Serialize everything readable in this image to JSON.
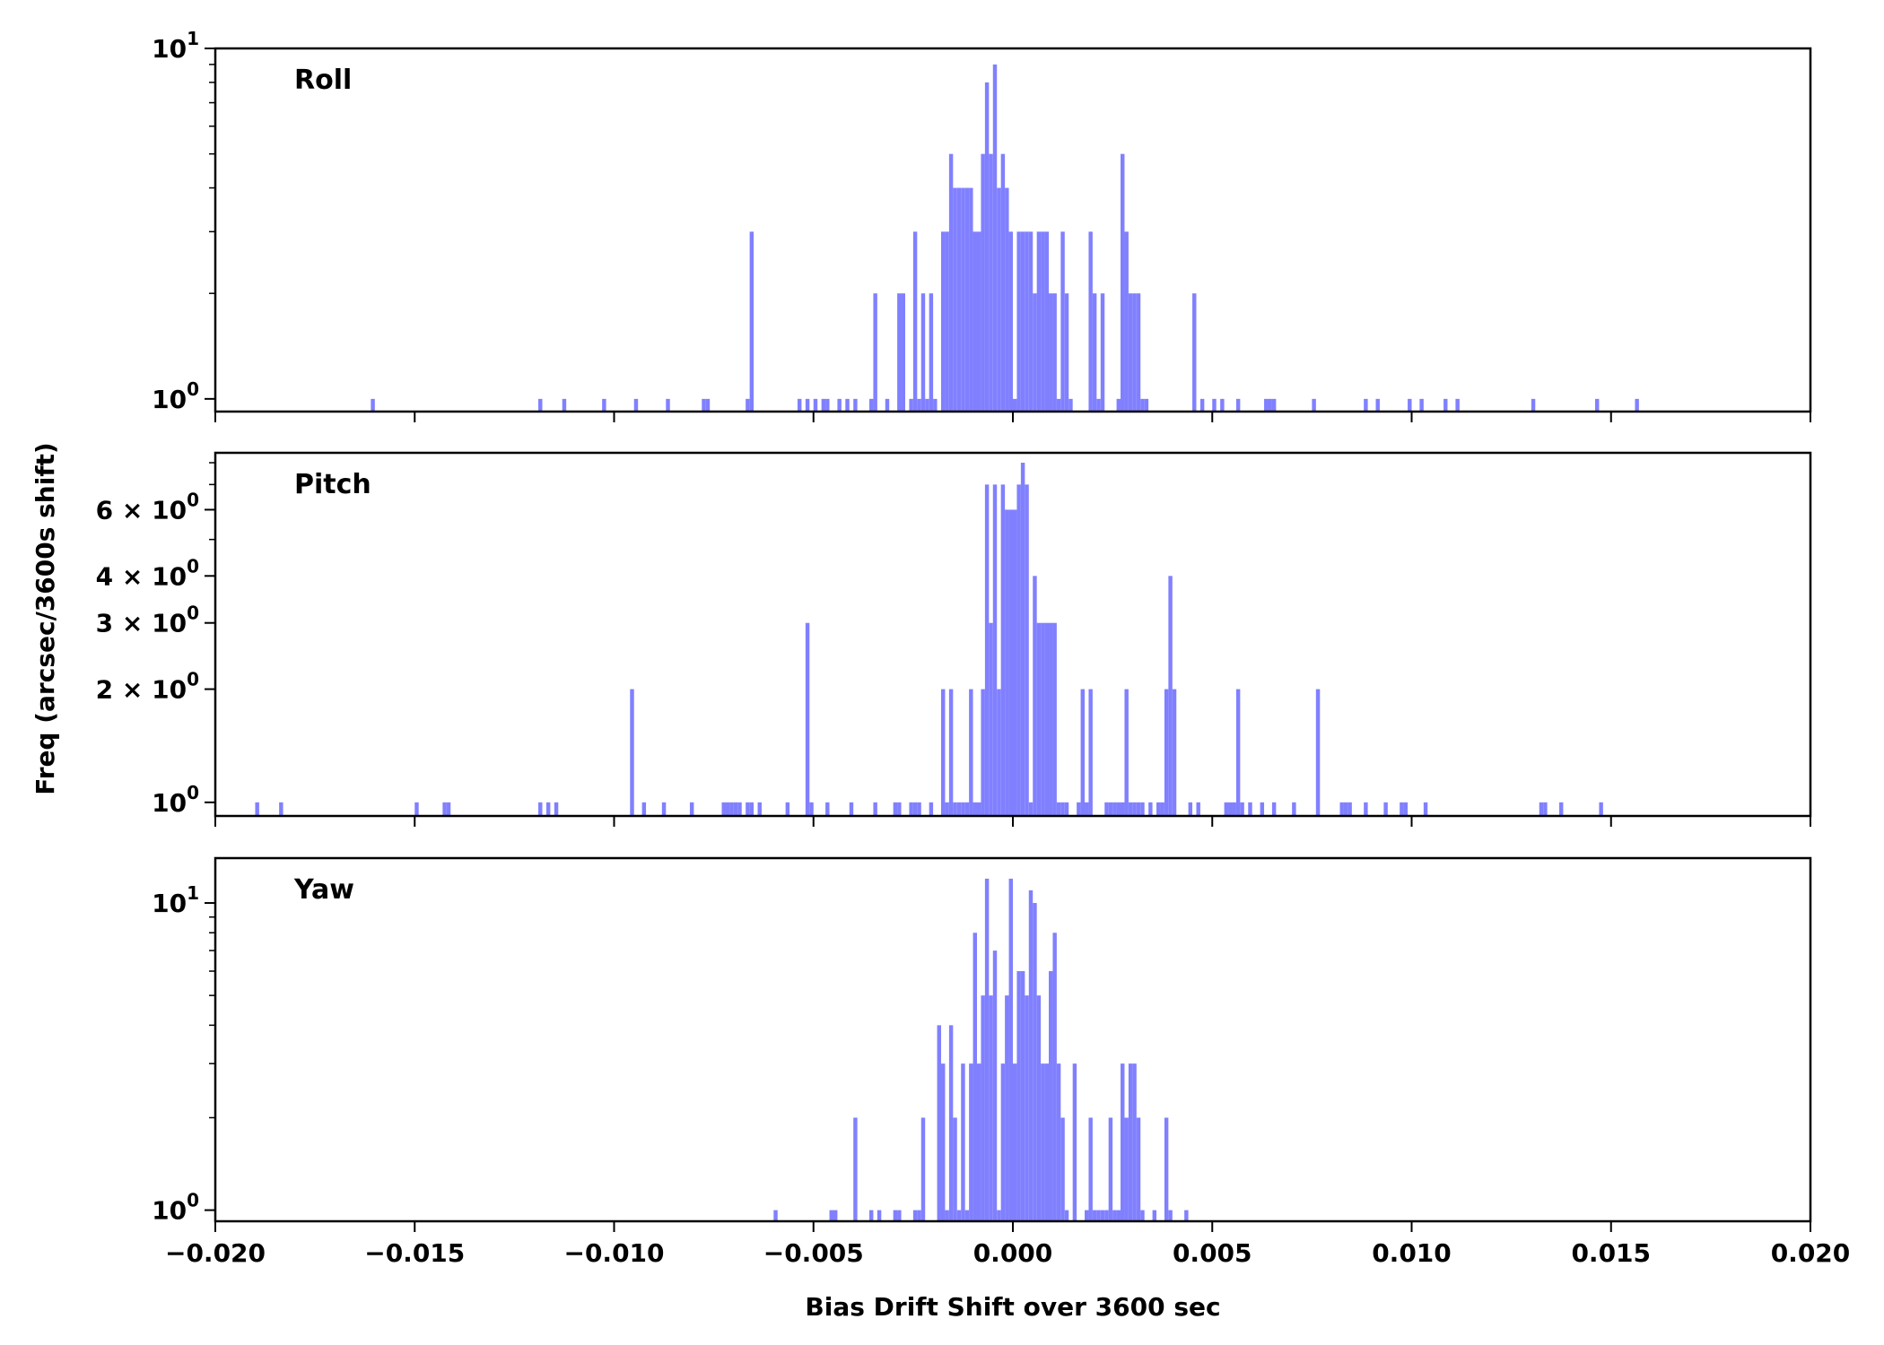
{
  "chart_data": {
    "type": "bar",
    "xlabel": "Bias Drift Shift over 3600 sec",
    "ylabel": "Freq (arcsec/3600s shift)",
    "xlim": [
      -0.02,
      0.02
    ],
    "xticks": [
      -0.02,
      -0.015,
      -0.01,
      -0.005,
      0.0,
      0.005,
      0.01,
      0.015,
      0.02
    ],
    "xtick_labels": [
      "−0.020",
      "−0.015",
      "−0.010",
      "−0.005",
      "0.000",
      "0.005",
      "0.010",
      "0.015",
      "0.020"
    ],
    "yscale": "log",
    "bin_width": 0.0001,
    "bar_color": "#8080ff",
    "grid": false,
    "panels": [
      {
        "label": "Roll",
        "ylim": [
          0.92,
          10
        ],
        "yticks": [
          {
            "value": 1,
            "base": "10",
            "exp": "0"
          },
          {
            "value": 10,
            "base": "10",
            "exp": "1"
          }
        ],
        "x": [
          -0.0161,
          -0.0119,
          -0.0113,
          -0.0103,
          -0.0095,
          -0.0087,
          -0.0078,
          -0.0077,
          -0.0067,
          -0.0066,
          -0.0054,
          -0.0052,
          -0.005,
          -0.0048,
          -0.0047,
          -0.0044,
          -0.0042,
          -0.004,
          -0.0036,
          -0.0035,
          -0.0032,
          -0.0029,
          -0.0028,
          -0.0026,
          -0.0025,
          -0.0024,
          -0.0023,
          -0.0022,
          -0.0021,
          -0.002,
          -0.0018,
          -0.0017,
          -0.0016,
          -0.0015,
          -0.0014,
          -0.0013,
          -0.0012,
          -0.0011,
          -0.001,
          -0.0009,
          -0.0008,
          -0.0007,
          -0.0006,
          -0.0005,
          -0.0004,
          -0.0003,
          -0.0002,
          -0.0001,
          0.0,
          0.0001,
          0.0002,
          0.0003,
          0.0004,
          0.0005,
          0.0006,
          0.0007,
          0.0008,
          0.0009,
          0.001,
          0.0011,
          0.0012,
          0.0013,
          0.0014,
          0.0019,
          0.002,
          0.0021,
          0.0022,
          0.0026,
          0.0027,
          0.0028,
          0.0029,
          0.003,
          0.0031,
          0.0032,
          0.0033,
          0.0045,
          0.0047,
          0.005,
          0.0052,
          0.0056,
          0.0063,
          0.0064,
          0.0065,
          0.0075,
          0.0088,
          0.0091,
          0.0099,
          0.0102,
          0.0108,
          0.0111,
          0.013,
          0.0146,
          0.0156
        ],
        "values": [
          1,
          1,
          1,
          1,
          1,
          1,
          1,
          1,
          1,
          3,
          1,
          1,
          1,
          1,
          1,
          1,
          1,
          1,
          1,
          2,
          1,
          2,
          2,
          1,
          3,
          1,
          2,
          1,
          2,
          1,
          3,
          3,
          5,
          4,
          4,
          4,
          4,
          4,
          3,
          3,
          5,
          8,
          5,
          9,
          4,
          5,
          4,
          3,
          1,
          3,
          3,
          3,
          3,
          2,
          3,
          3,
          3,
          2,
          2,
          1,
          3,
          2,
          1,
          3,
          2,
          1,
          2,
          1,
          5,
          3,
          2,
          2,
          2,
          1,
          1,
          2,
          1,
          1,
          1,
          1,
          1,
          1,
          1,
          1,
          1,
          1,
          1,
          1,
          1,
          1,
          1,
          1,
          1
        ]
      },
      {
        "label": "Pitch",
        "ylim": [
          0.92,
          8.5
        ],
        "yticks": [
          {
            "value": 1,
            "mant": "",
            "base": "10",
            "exp": "0"
          },
          {
            "value": 2,
            "mant": "2",
            "base": "10",
            "exp": "0"
          },
          {
            "value": 3,
            "mant": "3",
            "base": "10",
            "exp": "0"
          },
          {
            "value": 4,
            "mant": "4",
            "base": "10",
            "exp": "0"
          },
          {
            "value": 6,
            "mant": "6",
            "base": "10",
            "exp": "0"
          }
        ],
        "x": [
          -0.019,
          -0.0184,
          -0.015,
          -0.0143,
          -0.0142,
          -0.0119,
          -0.0117,
          -0.0115,
          -0.0096,
          -0.0093,
          -0.0088,
          -0.0081,
          -0.0073,
          -0.0072,
          -0.0071,
          -0.007,
          -0.0069,
          -0.0067,
          -0.0066,
          -0.0064,
          -0.0057,
          -0.0052,
          -0.0051,
          -0.0047,
          -0.0041,
          -0.0035,
          -0.003,
          -0.0029,
          -0.0026,
          -0.0025,
          -0.0024,
          -0.0021,
          -0.0018,
          -0.0017,
          -0.0016,
          -0.0015,
          -0.0014,
          -0.0013,
          -0.0012,
          -0.0011,
          -0.001,
          -0.0009,
          -0.0008,
          -0.0007,
          -0.0006,
          -0.0005,
          -0.0004,
          -0.0003,
          -0.0002,
          -0.0001,
          0.0,
          0.0001,
          0.0002,
          0.0003,
          0.0004,
          0.0005,
          0.0006,
          0.0007,
          0.0008,
          0.0009,
          0.001,
          0.0011,
          0.0012,
          0.0013,
          0.0016,
          0.0017,
          0.0018,
          0.0019,
          0.0023,
          0.0024,
          0.0025,
          0.0026,
          0.0027,
          0.0028,
          0.0029,
          0.003,
          0.0031,
          0.0032,
          0.0034,
          0.0036,
          0.0037,
          0.0038,
          0.0039,
          0.004,
          0.0044,
          0.0046,
          0.0053,
          0.0054,
          0.0055,
          0.0056,
          0.0057,
          0.0059,
          0.0062,
          0.0065,
          0.007,
          0.0076,
          0.0082,
          0.0083,
          0.0084,
          0.0088,
          0.0093,
          0.0097,
          0.0098,
          0.0103,
          0.0132,
          0.0133,
          0.0137,
          0.0147
        ],
        "values": [
          1,
          1,
          1,
          1,
          1,
          1,
          1,
          1,
          2,
          1,
          1,
          1,
          1,
          1,
          1,
          1,
          1,
          1,
          1,
          1,
          1,
          3,
          1,
          1,
          1,
          1,
          1,
          1,
          1,
          1,
          1,
          1,
          2,
          1,
          2,
          1,
          1,
          1,
          1,
          2,
          1,
          1,
          2,
          7,
          3,
          7,
          2,
          7,
          6,
          6,
          6,
          7,
          8,
          7,
          1,
          4,
          3,
          3,
          3,
          3,
          3,
          1,
          1,
          1,
          1,
          2,
          1,
          2,
          1,
          1,
          1,
          1,
          1,
          2,
          1,
          1,
          1,
          1,
          1,
          1,
          1,
          2,
          4,
          2,
          1,
          1,
          1,
          1,
          1,
          2,
          1,
          1,
          1,
          1,
          1,
          2,
          1,
          1,
          1,
          1,
          1,
          1,
          1,
          1,
          1,
          1,
          1,
          1
        ]
      },
      {
        "label": "Yaw",
        "ylim": [
          0.92,
          14
        ],
        "yticks": [
          {
            "value": 1,
            "base": "10",
            "exp": "0"
          },
          {
            "value": 10,
            "base": "10",
            "exp": "1"
          }
        ],
        "x": [
          -0.006,
          -0.0046,
          -0.0045,
          -0.004,
          -0.0036,
          -0.0034,
          -0.003,
          -0.0029,
          -0.0025,
          -0.0024,
          -0.0023,
          -0.0019,
          -0.0018,
          -0.0017,
          -0.0016,
          -0.0015,
          -0.0014,
          -0.0013,
          -0.0012,
          -0.0011,
          -0.001,
          -0.0009,
          -0.0008,
          -0.0007,
          -0.0006,
          -0.0005,
          -0.0004,
          -0.0003,
          -0.0002,
          -0.0001,
          0.0,
          0.0001,
          0.0002,
          0.0003,
          0.0004,
          0.0005,
          0.0006,
          0.0007,
          0.0008,
          0.0009,
          0.001,
          0.0011,
          0.0012,
          0.0013,
          0.0015,
          0.0018,
          0.0019,
          0.002,
          0.0021,
          0.0022,
          0.0023,
          0.0024,
          0.0025,
          0.0026,
          0.0027,
          0.0028,
          0.0029,
          0.003,
          0.0031,
          0.0032,
          0.0035,
          0.0038,
          0.0039,
          0.0043
        ],
        "values": [
          1,
          1,
          1,
          2,
          1,
          1,
          1,
          1,
          1,
          1,
          2,
          4,
          3,
          1,
          4,
          2,
          1,
          3,
          1,
          3,
          8,
          3,
          5,
          12,
          5,
          7,
          1,
          3,
          5,
          12,
          3,
          6,
          6,
          5,
          11,
          10,
          5,
          3,
          3,
          6,
          8,
          3,
          2,
          1,
          3,
          1,
          2,
          1,
          1,
          1,
          1,
          2,
          1,
          1,
          3,
          2,
          3,
          3,
          2,
          1,
          1,
          2,
          1,
          1
        ]
      }
    ]
  }
}
